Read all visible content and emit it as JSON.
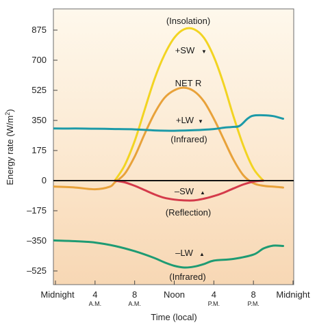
{
  "chart_data": {
    "type": "line",
    "xlabel": "Time (local)",
    "ylabel_main": "Energy rate (W/m",
    "ylabel_sup": "2",
    "ylabel_close": ")",
    "ylim": [
      -600,
      1000
    ],
    "xlim": [
      0,
      24
    ],
    "yticks": [
      {
        "value": 875,
        "label": "875"
      },
      {
        "value": 700,
        "label": "700"
      },
      {
        "value": 525,
        "label": "525"
      },
      {
        "value": 350,
        "label": "350"
      },
      {
        "value": 175,
        "label": "175"
      },
      {
        "value": 0,
        "label": "0"
      },
      {
        "value": -175,
        "label": "–175"
      },
      {
        "value": -350,
        "label": "–350"
      },
      {
        "value": -525,
        "label": "–525"
      }
    ],
    "xticks": [
      {
        "value": 0,
        "label": "Midnight",
        "sub": ""
      },
      {
        "value": 4,
        "label": "4",
        "sub": "A.M."
      },
      {
        "value": 8,
        "label": "8",
        "sub": "A.M."
      },
      {
        "value": 12,
        "label": "Noon",
        "sub": ""
      },
      {
        "value": 16,
        "label": "4",
        "sub": "P.M."
      },
      {
        "value": 20,
        "label": "8",
        "sub": "P.M."
      },
      {
        "value": 24,
        "label": "Midnight",
        "sub": ""
      }
    ],
    "series": [
      {
        "key": "sw_in",
        "color": "#f2d422",
        "x": [
          6.0,
          7,
          8,
          9,
          10,
          11,
          12,
          13,
          14,
          15,
          16,
          17,
          18,
          19,
          20,
          21.0
        ],
        "y": [
          0,
          90,
          230,
          410,
          590,
          730,
          830,
          880,
          880,
          830,
          720,
          560,
          370,
          200,
          70,
          0
        ]
      },
      {
        "key": "net_r",
        "color": "#e8a23a",
        "x": [
          -2.0,
          -1,
          0,
          2,
          4,
          5.5,
          6,
          7,
          8,
          9,
          10,
          11,
          12,
          13,
          14,
          15,
          16,
          17,
          18,
          19,
          20,
          21,
          22,
          23
        ],
        "y": [
          -30,
          -33,
          -35,
          -40,
          -50,
          -35,
          -10,
          40,
          140,
          270,
          390,
          480,
          525,
          540,
          520,
          460,
          360,
          240,
          120,
          30,
          -15,
          -30,
          -35,
          -40
        ]
      },
      {
        "key": "lw_in",
        "color": "#1c9aa8",
        "x": [
          -2.0,
          0,
          2,
          4,
          6,
          8,
          10,
          12,
          14,
          16,
          17,
          17.8,
          18.6,
          19.4,
          20,
          21,
          22,
          23
        ],
        "y": [
          305,
          303,
          303,
          302,
          300,
          298,
          292,
          290,
          293,
          300,
          308,
          312,
          318,
          360,
          378,
          380,
          375,
          360
        ]
      },
      {
        "key": "sw_out",
        "color": "#d43a4a",
        "x": [
          6.0,
          7,
          8,
          9,
          10,
          11,
          12,
          13,
          14,
          15,
          16,
          17,
          18,
          19,
          20,
          21.0
        ],
        "y": [
          0,
          -10,
          -30,
          -55,
          -80,
          -100,
          -110,
          -115,
          -115,
          -105,
          -90,
          -70,
          -45,
          -22,
          -6,
          0
        ]
      },
      {
        "key": "lw_out",
        "color": "#1e9b73",
        "x": [
          -2.0,
          0,
          2,
          4,
          6,
          8,
          10,
          11,
          12,
          13,
          14,
          15,
          16,
          18,
          20,
          21,
          22,
          23
        ],
        "y": [
          -345,
          -348,
          -352,
          -360,
          -380,
          -410,
          -450,
          -475,
          -495,
          -505,
          -500,
          -485,
          -465,
          -455,
          -430,
          -395,
          -378,
          -380
        ]
      }
    ]
  },
  "annotations": {
    "insolation": "(Insolation)",
    "plus_sw": "+SW",
    "net_r": "NET R",
    "plus_lw": "+LW",
    "infrared_top": "(Infrared)",
    "minus_sw": "–SW",
    "reflection": "(Reflection)",
    "minus_lw": "–LW",
    "infrared_bottom": "(Infrared)"
  },
  "colors": {
    "top_gradient_start": "#fef8ec",
    "top_gradient_end": "#fbe6cc",
    "bottom_gradient_start": "#fbe4c8",
    "bottom_gradient_end": "#f7d7b4",
    "zero_line": "#111111"
  }
}
